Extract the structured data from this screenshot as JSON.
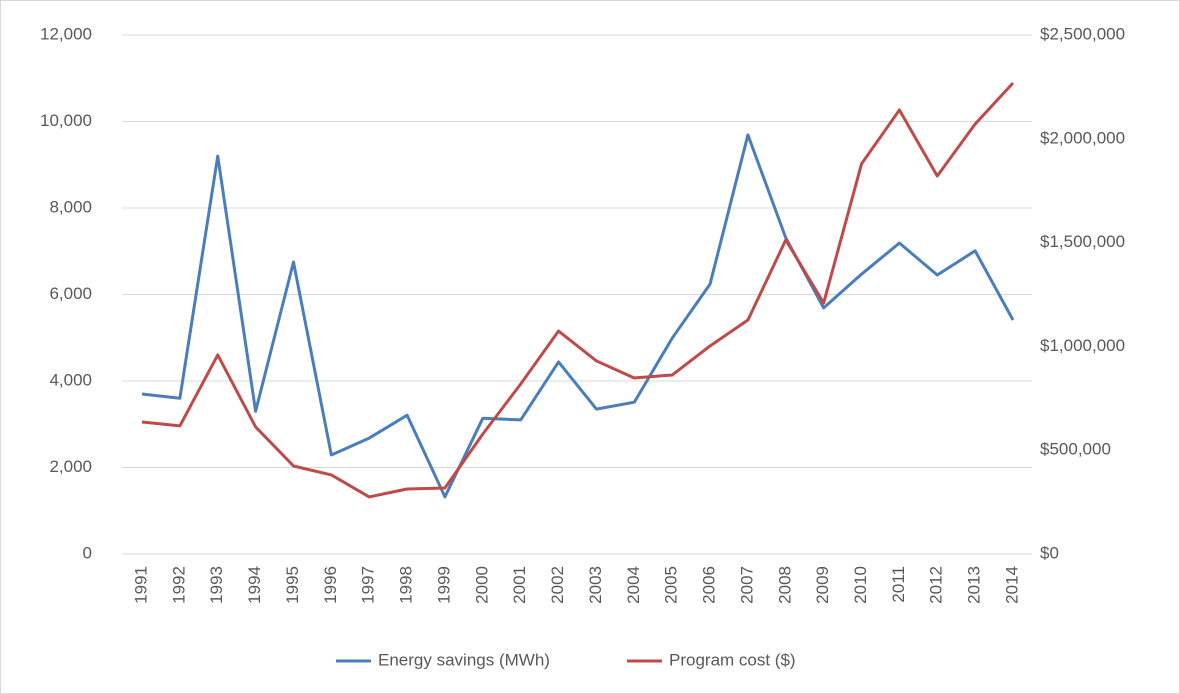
{
  "chart_data": {
    "type": "line",
    "categories": [
      "1991",
      "1992",
      "1993",
      "1994",
      "1995",
      "1996",
      "1997",
      "1998",
      "1999",
      "2000",
      "2001",
      "2002",
      "2003",
      "2004",
      "2005",
      "2006",
      "2007",
      "2008",
      "2009",
      "2010",
      "2011",
      "2012",
      "2013",
      "2014"
    ],
    "series": [
      {
        "name": "Energy savings (MWh)",
        "color": "#4a7ebb",
        "values": [
          3700,
          3600,
          9200,
          3300,
          6750,
          2290,
          2680,
          3210,
          1320,
          3140,
          3100,
          4440,
          3350,
          3510,
          4990,
          6240,
          9690,
          7310,
          5690,
          6470,
          7190,
          6450,
          7010,
          5410
        ]
      },
      {
        "name": "Program cost ($)",
        "color": "#be4b48",
        "axis": "y2",
        "values": [
          636000,
          617000,
          959000,
          612000,
          424000,
          381000,
          275000,
          313000,
          318000,
          578000,
          819000,
          1074000,
          930000,
          848000,
          862000,
          1002000,
          1127000,
          1513000,
          1209000,
          1879000,
          2139000,
          1821000,
          2071000,
          2269000
        ]
      }
    ],
    "ylim": [
      0,
      12000
    ],
    "yticks": [
      0,
      {
        "value": 2000,
        "label": "2,000"
      },
      {
        "value": 4000,
        "label": "4,000"
      },
      {
        "value": 6000,
        "label": "6,000"
      },
      {
        "value": 8000,
        "label": "8,000"
      },
      {
        "value": 10000,
        "label": "10,000"
      },
      {
        "value": 12000,
        "label": "12,000"
      }
    ],
    "y2lim": [
      0,
      2500000
    ],
    "y2ticks": [
      {
        "value": 0,
        "label": "$0"
      },
      {
        "value": 500000,
        "label": "$500,000"
      },
      {
        "value": 1000000,
        "label": "$1,000,000"
      },
      {
        "value": 1500000,
        "label": "$1,500,000"
      },
      {
        "value": 2000000,
        "label": "$2,000,000"
      },
      {
        "value": 2500000,
        "label": "$2,500,000"
      }
    ],
    "grid": true,
    "legend": "bottom"
  }
}
